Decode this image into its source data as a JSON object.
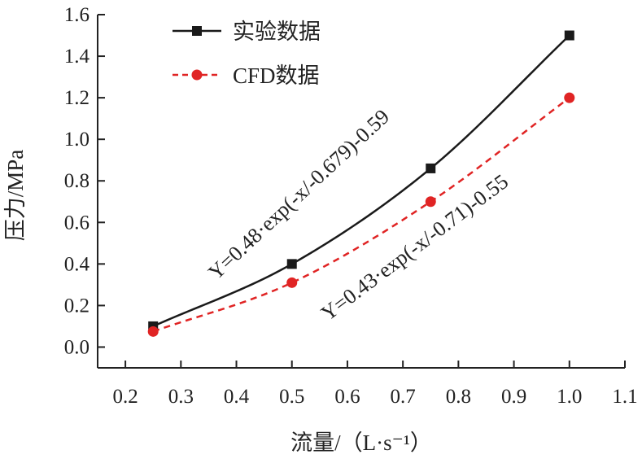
{
  "chart_data": {
    "type": "line",
    "xlabel": "流量/（L·s⁻¹）",
    "ylabel": "压力/MPa",
    "xlim": [
      0.15,
      1.1
    ],
    "ylim": [
      -0.1,
      1.6
    ],
    "xticks": [
      "0.2",
      "0.3",
      "0.4",
      "0.5",
      "0.6",
      "0.7",
      "0.8",
      "0.9",
      "1.0",
      "1.1"
    ],
    "yticks": [
      "0.0",
      "0.2",
      "0.4",
      "0.6",
      "0.8",
      "1.0",
      "1.2",
      "1.4",
      "1.6"
    ],
    "legend_position": "top-left",
    "series": [
      {
        "name": "实验数据",
        "color": "#1a1a1a",
        "marker": "square",
        "line_style": "solid",
        "x": [
          0.25,
          0.5,
          0.75,
          1.0
        ],
        "y": [
          0.1,
          0.4,
          0.86,
          1.5
        ],
        "equation": "Y=0.48·exp(-x/-0.679)-0.59"
      },
      {
        "name": "CFD数据",
        "color": "#e02424",
        "marker": "circle",
        "line_style": "dashed",
        "x": [
          0.25,
          0.5,
          0.75,
          1.0
        ],
        "y": [
          0.075,
          0.31,
          0.7,
          1.2
        ],
        "equation": "Y=0.43·exp(-x/-0.71)-0.55"
      }
    ]
  }
}
